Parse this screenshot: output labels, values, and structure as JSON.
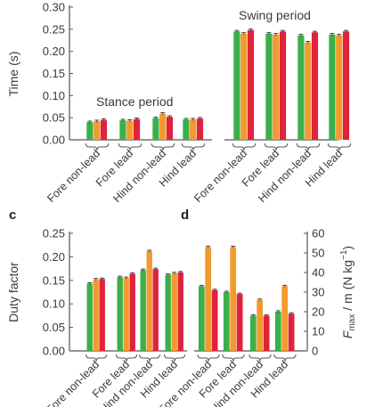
{
  "colors": {
    "green": "#3bb04a",
    "orange": "#f39a2e",
    "red": "#e0223c",
    "axis": "#555555"
  },
  "chart_data": [
    {
      "type": "bar",
      "panel": "",
      "ylabel": "Time (s)",
      "ylim": [
        0,
        0.3
      ],
      "yticks": [
        "0.00",
        "0.05",
        "0.10",
        "0.15",
        "0.20",
        "0.25",
        "0.30"
      ],
      "categories": [
        "Fore non-lead",
        "Fore lead",
        "Hind non-lead",
        "Hind lead",
        "Fore non-lead",
        "Fore lead",
        "Hind non-lead",
        "Hind lead"
      ],
      "annotations": [
        "Stance period",
        "Swing period"
      ],
      "series": [
        {
          "values": [
            0.04,
            0.044,
            0.049,
            0.046,
            0.245,
            0.24,
            0.236,
            0.238
          ]
        },
        {
          "values": [
            0.042,
            0.043,
            0.059,
            0.046,
            0.24,
            0.238,
            0.22,
            0.236
          ]
        },
        {
          "values": [
            0.045,
            0.047,
            0.052,
            0.048,
            0.248,
            0.245,
            0.243,
            0.245
          ]
        }
      ]
    },
    {
      "type": "bar",
      "panel": "c",
      "ylabel": "Duty factor",
      "ylim": [
        0,
        0.25
      ],
      "yticks": [
        "0.00",
        "0.05",
        "0.10",
        "0.15",
        "0.20",
        "0.25"
      ],
      "categories": [
        "Fore non-lead",
        "Fore lead",
        "Hind non-lead",
        "Hind lead"
      ],
      "series": [
        {
          "values": [
            0.143,
            0.157,
            0.172,
            0.162
          ]
        },
        {
          "values": [
            0.152,
            0.155,
            0.212,
            0.165
          ]
        },
        {
          "values": [
            0.153,
            0.164,
            0.174,
            0.167
          ]
        }
      ]
    },
    {
      "type": "bar",
      "panel": "d",
      "ylabel_main": "F",
      "ylabel_sub": "max",
      "ylabel_rest": " / m (N kg",
      "ylabel_sup": "−1",
      "ylabel_close": ")",
      "ylim": [
        0,
        60
      ],
      "yticks": [
        "0",
        "10",
        "20",
        "30",
        "40",
        "50",
        "60"
      ],
      "categories": [
        "Fore non-lead",
        "Fore lead",
        "Hind non-lead",
        "Hind lead"
      ],
      "series": [
        {
          "values": [
            33,
            30,
            18,
            20
          ]
        },
        {
          "values": [
            53,
            53,
            26,
            33
          ]
        },
        {
          "values": [
            31,
            29,
            18,
            19
          ]
        }
      ]
    }
  ]
}
